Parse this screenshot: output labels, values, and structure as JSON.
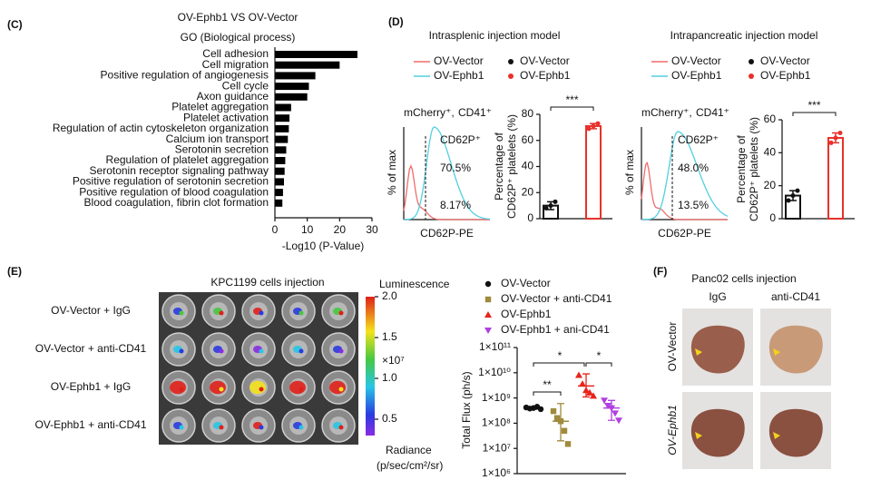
{
  "chart_data": [
    {
      "type": "barh",
      "title": "OV-Ephb1  VS OV-Vector",
      "subtitle": "GO (Biological process)",
      "categories": [
        "Cell adhesion",
        "Cell migration",
        "Positive regulation of angiogenesis",
        "Cell cycle",
        "Axon guidance",
        "Platelet aggregation",
        "Platelet activation",
        "Regulation of actin cytoskeleton organization",
        "Calcium ion transport",
        "Serotonin secretion",
        "Regulation of platelet aggregation",
        "Serotonin receptor signaling pathway",
        "Positive regulation of serotonin secretion",
        "Positive regulation of blood coagulation",
        "Blood coagulation, fibrin clot formation"
      ],
      "values": [
        25.5,
        20,
        12.5,
        10.5,
        10,
        5,
        4.5,
        4.3,
        4,
        3.5,
        3.2,
        3,
        2.8,
        2.5,
        2.3
      ],
      "label_colors": [
        "#111111",
        "#111111",
        "#111111",
        "#111111",
        "#111111",
        "#e8312a",
        "#e8312a",
        "#111111",
        "#111111",
        "#3a5fcd",
        "#e8312a",
        "#3a5fcd",
        "#111111",
        "#e8312a",
        "#e8312a"
      ],
      "color": "#000000",
      "xlabel": "-Log10 (P-Value)",
      "xlim": [
        0,
        30
      ],
      "xticks": [
        0,
        10,
        20,
        30
      ]
    },
    {
      "type": "bar",
      "title": "Intrasplenic injection model",
      "ylabel": [
        "Percentage of",
        "CD62P⁺ platelets (%)"
      ],
      "series": [
        {
          "name": "OV-Vector",
          "color": "#111111",
          "values": [
            10
          ],
          "errors": [
            3
          ],
          "points": [
            [
              8,
              10,
              13
            ]
          ]
        },
        {
          "name": "OV-Ephb1",
          "color": "#e8312a",
          "values": [
            71
          ],
          "errors": [
            2
          ],
          "points": [
            [
              69,
              71,
              73
            ]
          ]
        }
      ],
      "ylim": [
        0,
        80
      ],
      "yticks": [
        0,
        20,
        40,
        60,
        80
      ],
      "annotation": "***"
    },
    {
      "type": "bar",
      "title": "Intrapancreatic injection model",
      "ylabel": [
        "Percentage of",
        "CD62P⁺ platelets (%)"
      ],
      "series": [
        {
          "name": "OV-Vector",
          "color": "#111111",
          "values": [
            14
          ],
          "errors": [
            3
          ],
          "points": [
            [
              11,
              14,
              17
            ]
          ]
        },
        {
          "name": "OV-Ephb1",
          "color": "#e8312a",
          "values": [
            49
          ],
          "errors": [
            3
          ],
          "points": [
            [
              46,
              49,
              52
            ]
          ]
        }
      ],
      "ylim": [
        0,
        60
      ],
      "yticks": [
        0,
        20,
        40,
        60
      ],
      "annotation": "***"
    },
    {
      "type": "dot",
      "ylabel": "Total Flux (ph/s)",
      "log_scale": true,
      "series": [
        {
          "name": "OV-Vector",
          "color": "#111111",
          "marker": "circle",
          "values": [
            420000000.0,
            380000000.0,
            400000000.0,
            450000000.0,
            360000000.0
          ],
          "mean": 400000000.0,
          "error_range": [
            360000000.0,
            450000000.0
          ]
        },
        {
          "name": "OV-Vector + anti-CD41",
          "color": "#a08a3c",
          "marker": "square",
          "values": [
            300000000.0,
            160000000.0,
            120000000.0,
            50000000.0,
            15000000.0
          ],
          "mean": 120000000.0,
          "error_range": [
            20000000.0,
            600000000.0
          ]
        },
        {
          "name": "OV-Ephb1",
          "color": "#e8231a",
          "marker": "triangle",
          "values": [
            8000000000.0,
            3600000000.0,
            2000000000.0,
            1600000000.0,
            1200000000.0
          ],
          "mean": 3000000000.0,
          "error_range": [
            1100000000.0,
            9000000000.0
          ]
        },
        {
          "name": "OV-Ephb1 + ani-CD41",
          "color": "#b040e0",
          "marker": "triangle-down",
          "values": [
            800000000.0,
            500000000.0,
            400000000.0,
            250000000.0,
            130000000.0
          ],
          "mean": 400000000.0,
          "error_range": [
            130000000.0,
            800000000.0
          ]
        }
      ],
      "ylim": [
        1000000.0,
        100000000000.0
      ],
      "yticks": [
        {
          "value": 1000000.0,
          "label": "1×10⁶"
        },
        {
          "value": 10000000.0,
          "label": "1×10⁷"
        },
        {
          "value": 100000000.0,
          "label": "1×10⁸"
        },
        {
          "value": 1000000000.0,
          "label": "1×10⁹"
        },
        {
          "value": 10000000000.0,
          "label": "1×10¹⁰"
        },
        {
          "value": 100000000000.0,
          "label": "1×10¹¹"
        }
      ],
      "annotations": [
        "**",
        "*",
        "*"
      ]
    },
    {
      "type": "colorbar",
      "title": "Luminescence",
      "ylim": [
        0.3,
        2.0
      ],
      "yticks": [
        {
          "value": 2,
          "label": "2.0"
        },
        {
          "value": 1.5,
          "label": "1.5"
        },
        {
          "value": 1,
          "label": "1.0"
        },
        {
          "value": 0.5,
          "label": "0.5"
        }
      ],
      "multiplier": "×10⁷",
      "label": "Radiance",
      "unit": "(p/sec/cm²/sr)"
    }
  ],
  "figure": {
    "panel_labels": [
      "(C)",
      "(D)",
      "(E)",
      "(F)"
    ],
    "histograms": [
      {
        "label_red": "mCherry⁺,",
        "label": "CD41⁺",
        "gate": "CD62P⁺",
        "pct_high": "70.5%",
        "pct_low": "8.17%",
        "xlabel": "CD62P-PE",
        "ylabel": "% of max",
        "legend": [
          {
            "name": "OV-Vector",
            "color": "#f26b6b"
          },
          {
            "name": "OV-Ephb1",
            "color": "#52cfe0"
          }
        ]
      },
      {
        "label_red": "mCherry⁺,",
        "label": "CD41⁺",
        "gate": "CD62P⁺",
        "pct_high": "48.0%",
        "pct_low": "13.5%",
        "xlabel": "CD62P-PE",
        "ylabel": "% of max",
        "legend": [
          {
            "name": "OV-Vector",
            "color": "#f26b6b"
          },
          {
            "name": "OV-Ephb1",
            "color": "#52cfe0"
          }
        ]
      }
    ],
    "ivis": {
      "title": "KPC1199  cells injection",
      "rows": [
        "OV-Vector + IgG",
        "OV-Vector + anti-CD41",
        "OV-Ephb1 + IgG",
        "OV-Ephb1 + anti-CD41"
      ]
    },
    "liver": {
      "title": "Panc02 cells injection",
      "columns": [
        "IgG",
        "anti-CD41"
      ],
      "rows": [
        "OV-Vector",
        "OV-Ephb1"
      ]
    }
  }
}
